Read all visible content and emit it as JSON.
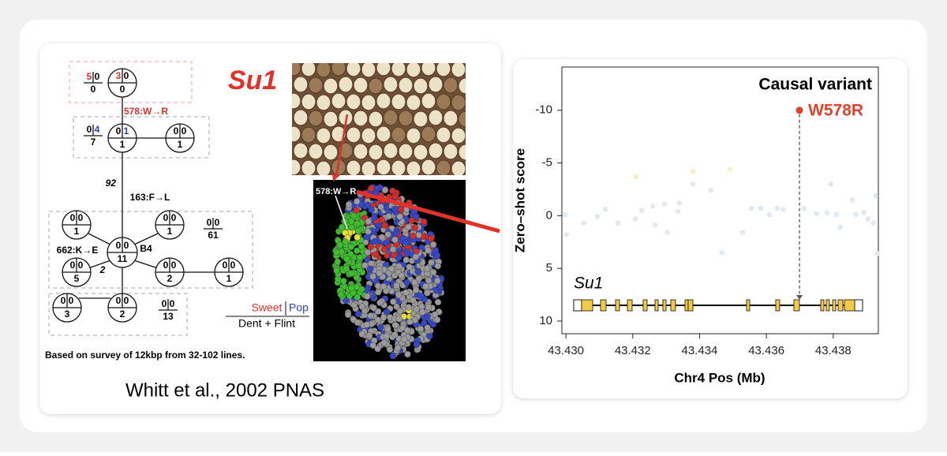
{
  "left_panel": {
    "gene": "Su1",
    "mutation_top": "578:W→R",
    "branch_count": "92",
    "mutation_mid": "163:F→L",
    "mutation_low": "662:K→E",
    "branch_low": "2",
    "node_label": "B4",
    "nodes": [
      [
        "3",
        "0",
        "0"
      ],
      [
        "0",
        "1",
        "1"
      ],
      [
        "0",
        "0",
        "1"
      ],
      [
        "0",
        "0",
        "11"
      ],
      [
        "0",
        "0",
        "1"
      ],
      [
        "0",
        "0",
        "1"
      ],
      [
        "0",
        "0",
        "5"
      ],
      [
        "0",
        "0",
        "2"
      ],
      [
        "0",
        "0",
        "1"
      ],
      [
        "0",
        "0",
        "2"
      ],
      [
        "0",
        "0",
        "3"
      ]
    ],
    "fractions": [
      [
        "5",
        "0",
        "0"
      ],
      [
        "0",
        "4",
        "7"
      ],
      [
        "0",
        "0",
        "61"
      ],
      [
        "0",
        "0",
        "13"
      ]
    ],
    "legend": {
      "sweet": "Sweet",
      "pop": "Pop",
      "dent_flint": "Dent + Flint"
    },
    "structure_label": "578:W→R",
    "note": "Based on survey of 12kbp from 32-102 lines.",
    "citation": "Whitt et al., 2002 PNAS"
  },
  "chart_data": {
    "type": "scatter",
    "annotation": "Causal variant",
    "gene_label": "Su1",
    "xlabel": "Chr4 Pos (Mb)",
    "ylabel": "Zero–shot score",
    "xlim": [
      43.42988,
      43.43935
    ],
    "ylim": [
      11.2,
      -14.1
    ],
    "xticks": [
      {
        "value": 43.43,
        "label": "43.430"
      },
      {
        "value": 43.432,
        "label": "43.432"
      },
      {
        "value": 43.434,
        "label": "43.434"
      },
      {
        "value": 43.436,
        "label": "43.436"
      },
      {
        "value": 43.438,
        "label": "43.438"
      }
    ],
    "yticks": [
      -10,
      -5,
      0,
      5,
      10
    ],
    "x": [
      43.42998,
      43.43002,
      43.43054,
      43.43094,
      43.43118,
      43.43156,
      43.43208,
      43.4321,
      43.43227,
      43.4326,
      43.43267,
      43.43295,
      43.43304,
      43.43335,
      43.4334,
      43.4338,
      43.4338,
      43.43434,
      43.43467,
      43.43491,
      43.43529,
      43.43555,
      43.43583,
      43.43609,
      43.43632,
      43.43651,
      43.43713,
      43.4375,
      43.43781,
      43.43793,
      43.43809,
      43.43821,
      43.43857,
      43.43868,
      43.43892,
      43.43904,
      43.4392,
      43.43927,
      43.43932
    ],
    "values": [
      -0.1,
      1.8,
      0.7,
      0.1,
      -0.6,
      0.7,
      0.3,
      -3.7,
      -0.5,
      -0.9,
      0.9,
      -1.1,
      1.6,
      -0.4,
      -1.2,
      -3.0,
      -4.2,
      -2.4,
      3.5,
      -4.4,
      1.6,
      -0.7,
      -0.7,
      -0.1,
      -0.7,
      -0.6,
      -0.7,
      -0.2,
      -0.3,
      -3.0,
      -0.1,
      1.1,
      -1.5,
      -0.1,
      -0.3,
      0.3,
      0.7,
      -1.9,
      3.6
    ],
    "colors": [
      "#e2e9ef",
      "#e2e9ef",
      "#e2e9ef",
      "#e2e9ef",
      "#e2e9ef",
      "#e2e9ef",
      "#e2e9ef",
      "#f6f1c6",
      "#e2e9ef",
      "#e2e9ef",
      "#e2e9ef",
      "#e2e9ef",
      "#e2e9ef",
      "#e2e9ef",
      "#e2e9ef",
      "#e2e9ef",
      "#f6f1c6",
      "#e2e9ef",
      "#e2e9ef",
      "#f6f1c6",
      "#e2e9ef",
      "#e2e9ef",
      "#e2e9ef",
      "#e2e9ef",
      "#e2e9ef",
      "#e2e9ef",
      "#e2e9ef",
      "#e2e9ef",
      "#e2e9ef",
      "#e2e9ef",
      "#e2e9ef",
      "#e2e9ef",
      "#e2e9ef",
      "#e2e9ef",
      "#e2e9ef",
      "#e2e9ef",
      "#e2e9ef",
      "#e2e9ef",
      "#e2e9ef"
    ],
    "highlight": {
      "x": 43.43699,
      "value": -10,
      "label": "W578R",
      "color": "#e0432d"
    }
  }
}
